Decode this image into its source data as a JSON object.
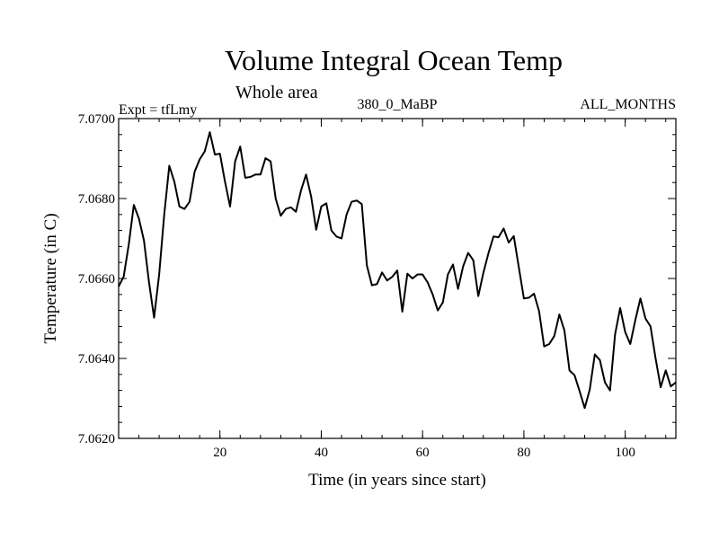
{
  "chart_data": {
    "type": "line",
    "title": "Volume Integral Ocean Temp",
    "subtitle": "Whole area",
    "left_string": "Expt = tfLmy",
    "center_string": "380_0_MaBP",
    "right_string": "ALL_MONTHS",
    "xlabel": "Time (in years since start)",
    "ylabel": "Temperature (in C)",
    "xlim": [
      0,
      110
    ],
    "ylim": [
      7.062,
      7.07
    ],
    "x_ticks": [
      20,
      40,
      60,
      80,
      100
    ],
    "x_tick_labels": [
      "20",
      "40",
      "60",
      "80",
      "100"
    ],
    "y_ticks": [
      7.062,
      7.064,
      7.066,
      7.068,
      7.07
    ],
    "y_tick_labels": [
      "7.0620",
      "7.0640",
      "7.0660",
      "7.0680",
      "7.0700"
    ],
    "x_minor_step": 4,
    "y_minor_step": 0.0004,
    "line_color": "#000000",
    "series": [
      {
        "name": "Volume Integral Ocean Temp",
        "x": [
          0,
          1,
          2,
          3,
          4,
          5,
          6,
          7,
          8,
          9,
          10,
          11,
          12,
          13,
          14,
          15,
          16,
          17,
          18,
          19,
          20,
          21,
          22,
          23,
          24,
          25,
          26,
          27,
          28,
          29,
          30,
          31,
          32,
          33,
          34,
          35,
          36,
          37,
          38,
          39,
          40,
          41,
          42,
          43,
          44,
          45,
          46,
          47,
          48,
          49,
          50,
          51,
          52,
          53,
          54,
          55,
          56,
          57,
          58,
          59,
          60,
          61,
          62,
          63,
          64,
          65,
          66,
          67,
          68,
          69,
          70,
          71,
          72,
          73,
          74,
          75,
          76,
          77,
          78,
          79,
          80,
          81,
          82,
          83,
          84,
          85,
          86,
          87,
          88,
          89,
          90,
          91,
          92,
          93,
          94,
          95,
          96,
          97,
          98,
          99,
          100,
          101,
          102,
          103,
          104,
          105,
          106,
          107,
          108,
          109,
          110
        ],
        "values": [
          7.0658,
          7.06605,
          7.06685,
          7.06784,
          7.0675,
          7.06695,
          7.0659,
          7.06502,
          7.0661,
          7.0676,
          7.06882,
          7.06842,
          7.0678,
          7.06774,
          7.06792,
          7.06867,
          7.06898,
          7.06918,
          7.06966,
          7.0691,
          7.06912,
          7.06842,
          7.0678,
          7.06893,
          7.0693,
          7.06852,
          7.06854,
          7.0686,
          7.0686,
          7.06901,
          7.06893,
          7.068,
          7.06757,
          7.06774,
          7.06778,
          7.06767,
          7.0682,
          7.0686,
          7.06805,
          7.06722,
          7.0678,
          7.06788,
          7.0672,
          7.06705,
          7.067,
          7.0676,
          7.06792,
          7.06795,
          7.06786,
          7.06633,
          7.06583,
          7.06586,
          7.06615,
          7.06595,
          7.06604,
          7.0662,
          7.06517,
          7.06612,
          7.066,
          7.0661,
          7.0661,
          7.0659,
          7.0656,
          7.0652,
          7.0654,
          7.0661,
          7.06635,
          7.06574,
          7.0663,
          7.06664,
          7.06646,
          7.06556,
          7.06614,
          7.06663,
          7.06705,
          7.06703,
          7.06725,
          7.0669,
          7.06706,
          7.06628,
          7.0655,
          7.06552,
          7.06562,
          7.06518,
          7.0643,
          7.06436,
          7.06456,
          7.0651,
          7.0647,
          7.0637,
          7.06358,
          7.06318,
          7.06276,
          7.06322,
          7.0641,
          7.06396,
          7.0634,
          7.0632,
          7.0646,
          7.06526,
          7.06466,
          7.06436,
          7.06496,
          7.0655,
          7.065,
          7.0648,
          7.064,
          7.06328,
          7.0637,
          7.0633,
          7.0634
        ]
      }
    ]
  }
}
